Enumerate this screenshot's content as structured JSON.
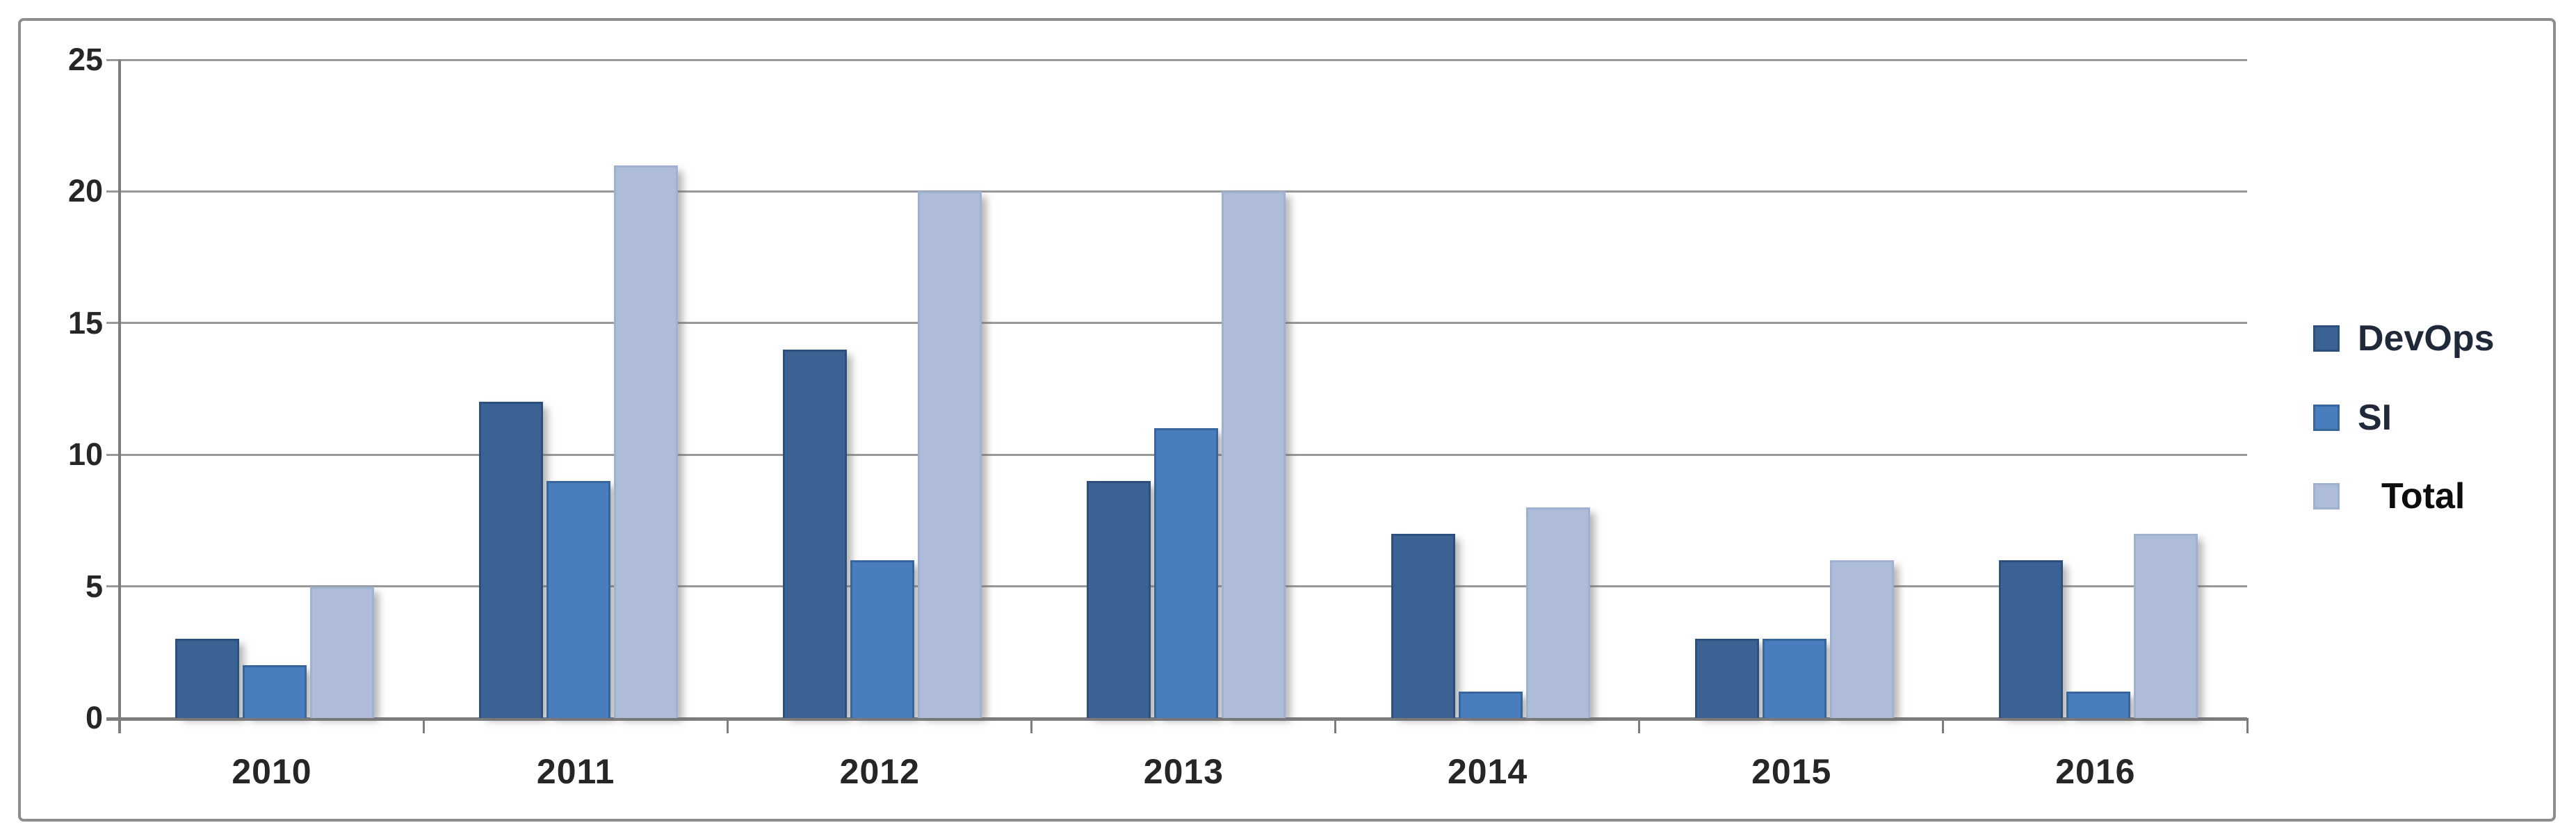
{
  "chart_data": {
    "type": "bar",
    "title": "",
    "xlabel": "",
    "ylabel": "",
    "categories": [
      "2010",
      "2011",
      "2012",
      "2013",
      "2014",
      "2015",
      "2016"
    ],
    "series": [
      {
        "name": "DevOps",
        "values": [
          3,
          12,
          14,
          9,
          7,
          3,
          6
        ],
        "color": "#3a6394",
        "border_color": "#2c507b"
      },
      {
        "name": "SI",
        "values": [
          2,
          9,
          6,
          11,
          1,
          3,
          1
        ],
        "color": "#4a7dbd",
        "border_color": "#38669c"
      },
      {
        "name": "Total",
        "values": [
          5,
          21,
          20,
          20,
          8,
          6,
          7
        ],
        "color": "#aebcda",
        "border_color": "#9fb1d1"
      }
    ],
    "ylim": [
      0,
      25
    ],
    "yticks": [
      0,
      5,
      10,
      15,
      20,
      25
    ],
    "grid": true,
    "legend_position": "right"
  },
  "legend": {
    "items": [
      {
        "label": "DevOps",
        "bold": false
      },
      {
        "label": "SI",
        "bold": false
      },
      {
        "label": "Total",
        "bold": true
      }
    ]
  },
  "colors": {
    "background": "#ffffff",
    "frame_border": "#8d8d8d",
    "gridline": "#999999",
    "axis": "#7d7d7d",
    "tick_text": "#262626",
    "legend_text": "#20293a"
  }
}
